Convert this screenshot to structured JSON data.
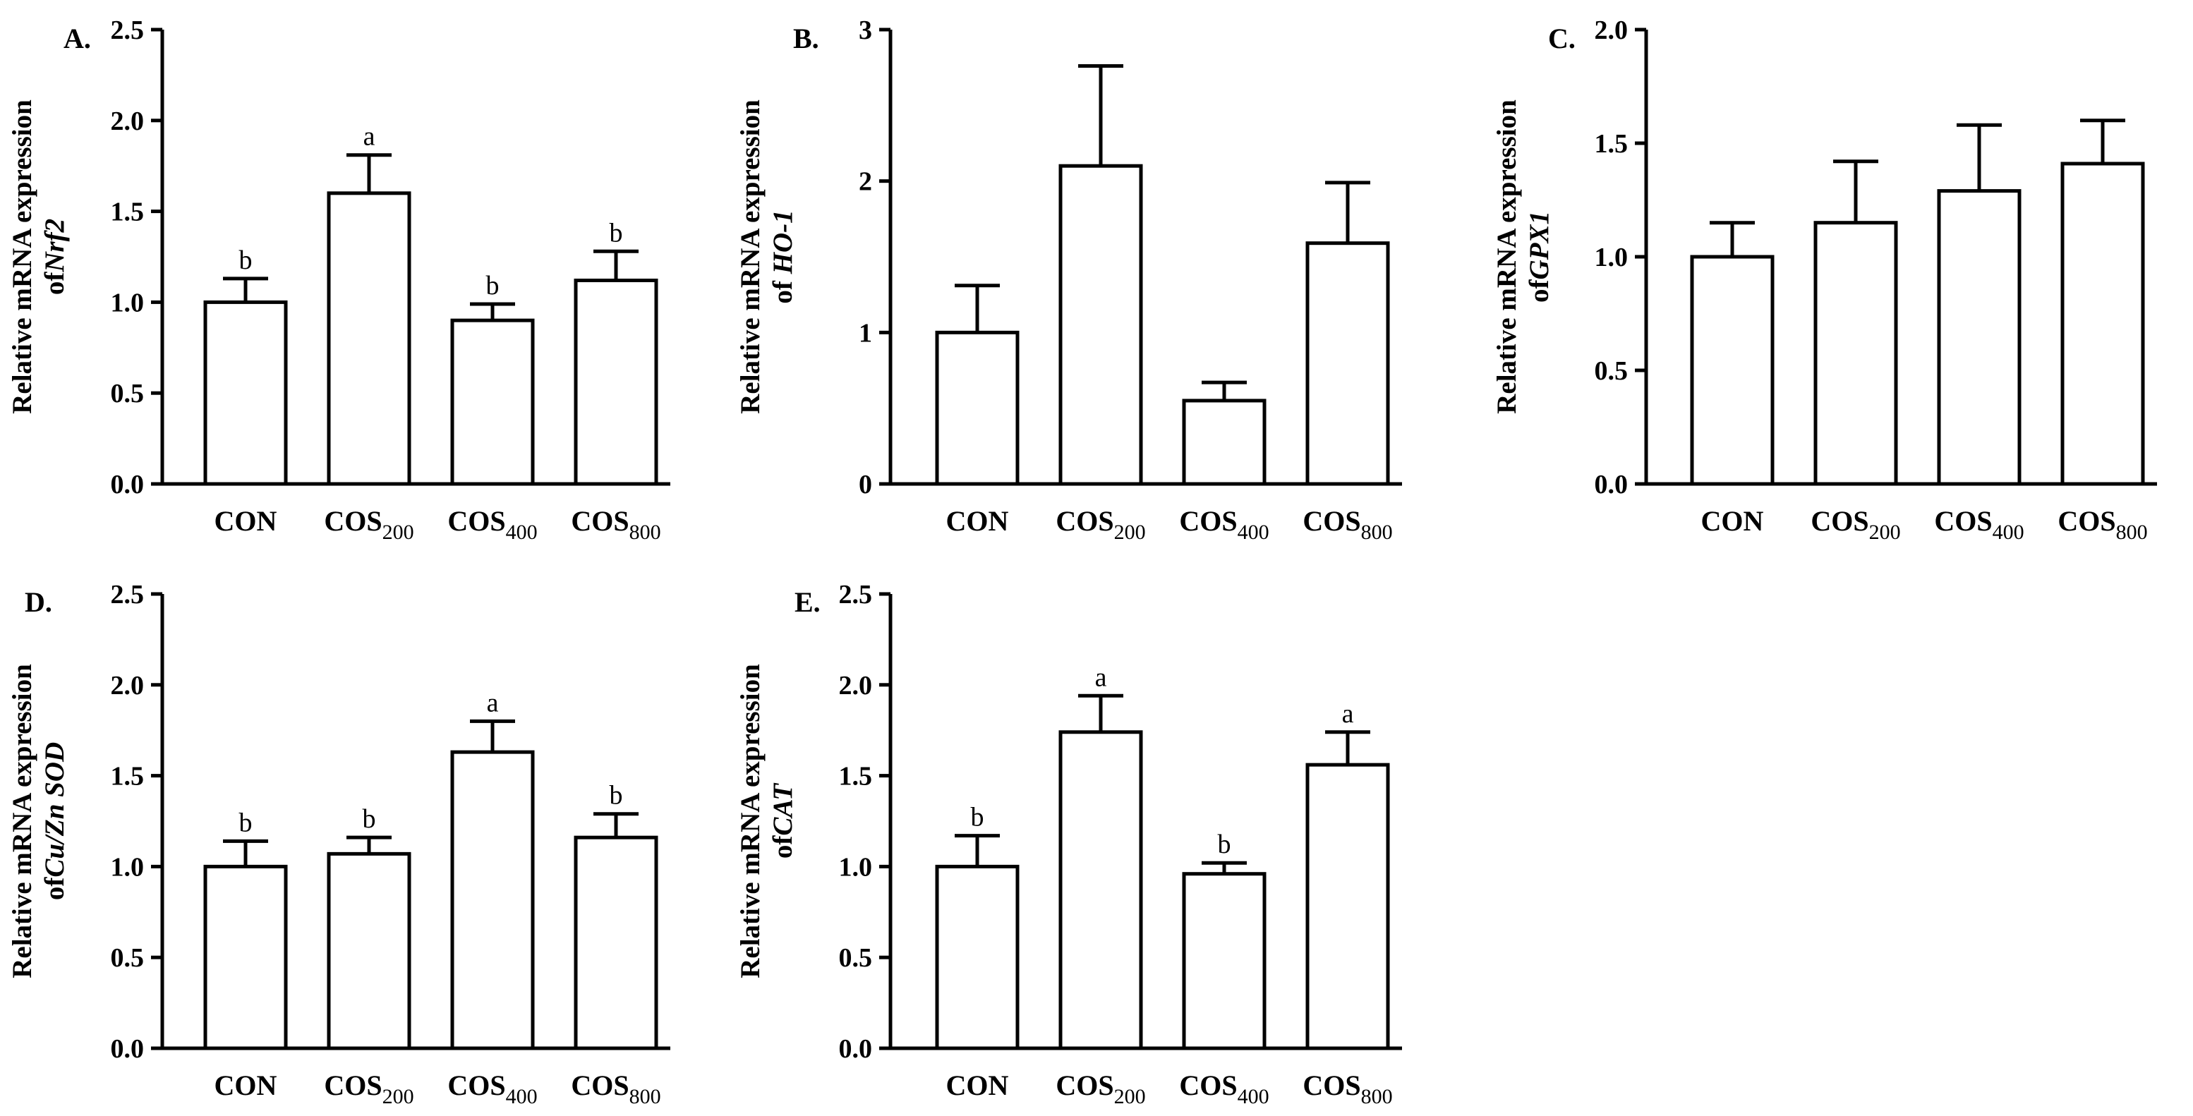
{
  "chart_data": [
    {
      "type": "bar",
      "panel": "A.",
      "ylabel_line1": "Relative mRNA expression",
      "ylabel_prefix": "of",
      "ylabel_gene": "Nrf2",
      "categories": [
        {
          "base": "CON",
          "sub": ""
        },
        {
          "base": "COS",
          "sub": "200"
        },
        {
          "base": "COS",
          "sub": "400"
        },
        {
          "base": "COS",
          "sub": "800"
        }
      ],
      "values": [
        1.0,
        1.6,
        0.9,
        1.12
      ],
      "errors": [
        0.13,
        0.21,
        0.09,
        0.16
      ],
      "significance": [
        "b",
        "a",
        "b",
        "b"
      ],
      "ylim": [
        0,
        2.5
      ],
      "ticks": [
        "0.0",
        "0.5",
        "1.0",
        "1.5",
        "2.0",
        "2.5"
      ]
    },
    {
      "type": "bar",
      "panel": "B.",
      "ylabel_line1": "Relative mRNA expression",
      "ylabel_prefix": "of ",
      "ylabel_gene": "HO-1",
      "categories": [
        {
          "base": "CON",
          "sub": ""
        },
        {
          "base": "COS",
          "sub": "200"
        },
        {
          "base": "COS",
          "sub": "400"
        },
        {
          "base": "COS",
          "sub": "800"
        }
      ],
      "values": [
        1.0,
        2.1,
        0.55,
        1.59
      ],
      "errors": [
        0.31,
        0.66,
        0.12,
        0.4
      ],
      "significance": [
        "",
        "",
        "",
        ""
      ],
      "ylim": [
        0,
        3
      ],
      "ticks": [
        "0",
        "1",
        "2",
        "3"
      ]
    },
    {
      "type": "bar",
      "panel": "C.",
      "ylabel_line1": "Relative mRNA expression",
      "ylabel_prefix": "of",
      "ylabel_gene": "GPX1",
      "categories": [
        {
          "base": "CON",
          "sub": ""
        },
        {
          "base": "COS",
          "sub": "200"
        },
        {
          "base": "COS",
          "sub": "400"
        },
        {
          "base": "COS",
          "sub": "800"
        }
      ],
      "values": [
        1.0,
        1.15,
        1.29,
        1.41
      ],
      "errors": [
        0.15,
        0.27,
        0.29,
        0.19
      ],
      "significance": [
        "",
        "",
        "",
        ""
      ],
      "ylim": [
        0,
        2.0
      ],
      "ticks": [
        "0.0",
        "0.5",
        "1.0",
        "1.5",
        "2.0"
      ]
    },
    {
      "type": "bar",
      "panel": "D.",
      "ylabel_line1": "Relative mRNA expression",
      "ylabel_prefix": "of",
      "ylabel_gene": "Cu/Zn SOD",
      "categories": [
        {
          "base": "CON",
          "sub": ""
        },
        {
          "base": "COS",
          "sub": "200"
        },
        {
          "base": "COS",
          "sub": "400"
        },
        {
          "base": "COS",
          "sub": "800"
        }
      ],
      "values": [
        1.0,
        1.07,
        1.63,
        1.16
      ],
      "errors": [
        0.14,
        0.09,
        0.17,
        0.13
      ],
      "significance": [
        "b",
        "b",
        "a",
        "b"
      ],
      "ylim": [
        0,
        2.5
      ],
      "ticks": [
        "0.0",
        "0.5",
        "1.0",
        "1.5",
        "2.0",
        "2.5"
      ]
    },
    {
      "type": "bar",
      "panel": "E.",
      "ylabel_line1": "Relative mRNA expression",
      "ylabel_prefix": "of",
      "ylabel_gene": "CAT",
      "categories": [
        {
          "base": "CON",
          "sub": ""
        },
        {
          "base": "COS",
          "sub": "200"
        },
        {
          "base": "COS",
          "sub": "400"
        },
        {
          "base": "COS",
          "sub": "800"
        }
      ],
      "values": [
        1.0,
        1.74,
        0.96,
        1.56
      ],
      "errors": [
        0.17,
        0.2,
        0.06,
        0.18
      ],
      "significance": [
        "b",
        "a",
        "b",
        "a"
      ],
      "ylim": [
        0,
        2.5
      ],
      "ticks": [
        "0.0",
        "0.5",
        "1.0",
        "1.5",
        "2.0",
        "2.5"
      ]
    }
  ]
}
